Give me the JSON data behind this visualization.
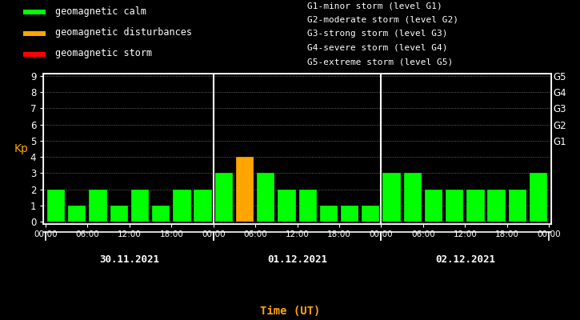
{
  "background_color": "#000000",
  "plot_bg_color": "#000000",
  "grid_color": "#ffffff",
  "bar_color_calm": "#00ff00",
  "bar_color_disturbance": "#ffa500",
  "bar_color_storm": "#ff0000",
  "text_color": "#ffffff",
  "orange_color": "#ffa500",
  "ylabel": "Kp",
  "xlabel": "Time (UT)",
  "ylim": [
    0,
    9
  ],
  "yticks": [
    0,
    1,
    2,
    3,
    4,
    5,
    6,
    7,
    8,
    9
  ],
  "right_labels": [
    "G5",
    "G4",
    "G3",
    "G2",
    "G1"
  ],
  "right_label_yvals": [
    9,
    8,
    7,
    6,
    5
  ],
  "days": [
    "30.11.2021",
    "01.12.2021",
    "02.12.2021"
  ],
  "legend_items": [
    {
      "label": "geomagnetic calm",
      "color": "#00ff00"
    },
    {
      "label": "geomagnetic disturbances",
      "color": "#ffa500"
    },
    {
      "label": "geomagnetic storm",
      "color": "#ff0000"
    }
  ],
  "right_legend_lines": [
    "G1-minor storm (level G1)",
    "G2-moderate storm (level G2)",
    "G3-strong storm (level G3)",
    "G4-severe storm (level G4)",
    "G5-extreme storm (level G5)"
  ],
  "kp_values": [
    2,
    1,
    2,
    1,
    2,
    1,
    2,
    2,
    3,
    4,
    3,
    2,
    2,
    1,
    1,
    1,
    3,
    3,
    2,
    2,
    2,
    2,
    2,
    3
  ],
  "bar_colors": [
    "#00ff00",
    "#00ff00",
    "#00ff00",
    "#00ff00",
    "#00ff00",
    "#00ff00",
    "#00ff00",
    "#00ff00",
    "#00ff00",
    "#ffa500",
    "#00ff00",
    "#00ff00",
    "#00ff00",
    "#00ff00",
    "#00ff00",
    "#00ff00",
    "#00ff00",
    "#00ff00",
    "#00ff00",
    "#00ff00",
    "#00ff00",
    "#00ff00",
    "#00ff00",
    "#00ff00"
  ],
  "xtick_labels_per_day": [
    "00:00",
    "06:00",
    "12:00",
    "18:00"
  ],
  "bar_width": 0.85,
  "figsize": [
    7.25,
    4.0
  ],
  "dpi": 100
}
